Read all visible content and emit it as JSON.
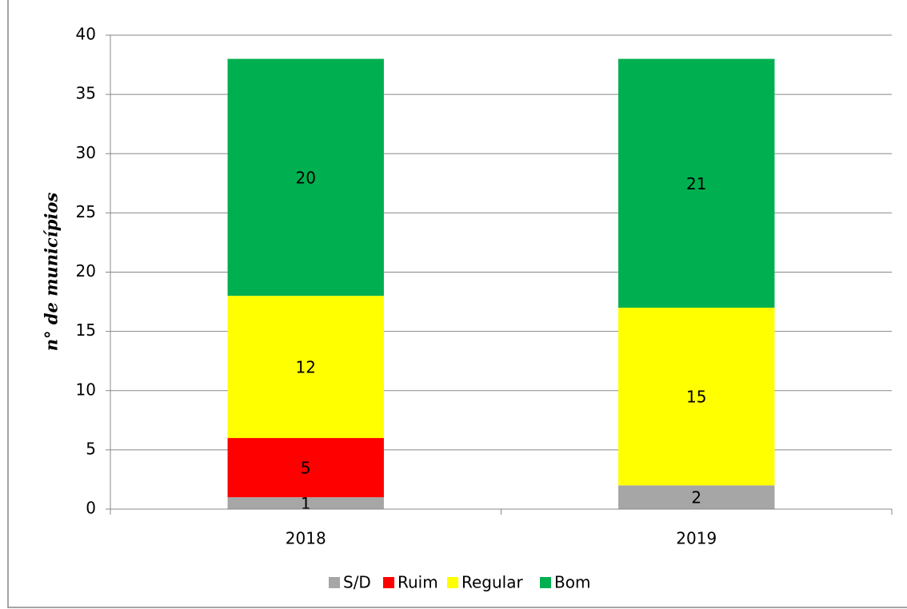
{
  "chart_data": {
    "type": "stacked_bar",
    "ylabel": "n° de municípios",
    "categories": [
      "2018",
      "2019"
    ],
    "series": [
      {
        "name": "S/D",
        "color": "#a6a6a6",
        "values": [
          1,
          2
        ]
      },
      {
        "name": "Ruim",
        "color": "#ff0000",
        "values": [
          5,
          0
        ]
      },
      {
        "name": "Regular",
        "color": "#ffff00",
        "values": [
          12,
          15
        ]
      },
      {
        "name": "Bom",
        "color": "#00b050",
        "values": [
          20,
          21
        ]
      }
    ],
    "ylim": [
      0,
      40
    ],
    "yticks": [
      0,
      5,
      10,
      15,
      20,
      25,
      30,
      35,
      40
    ],
    "grid": true,
    "legend": "bottom"
  }
}
